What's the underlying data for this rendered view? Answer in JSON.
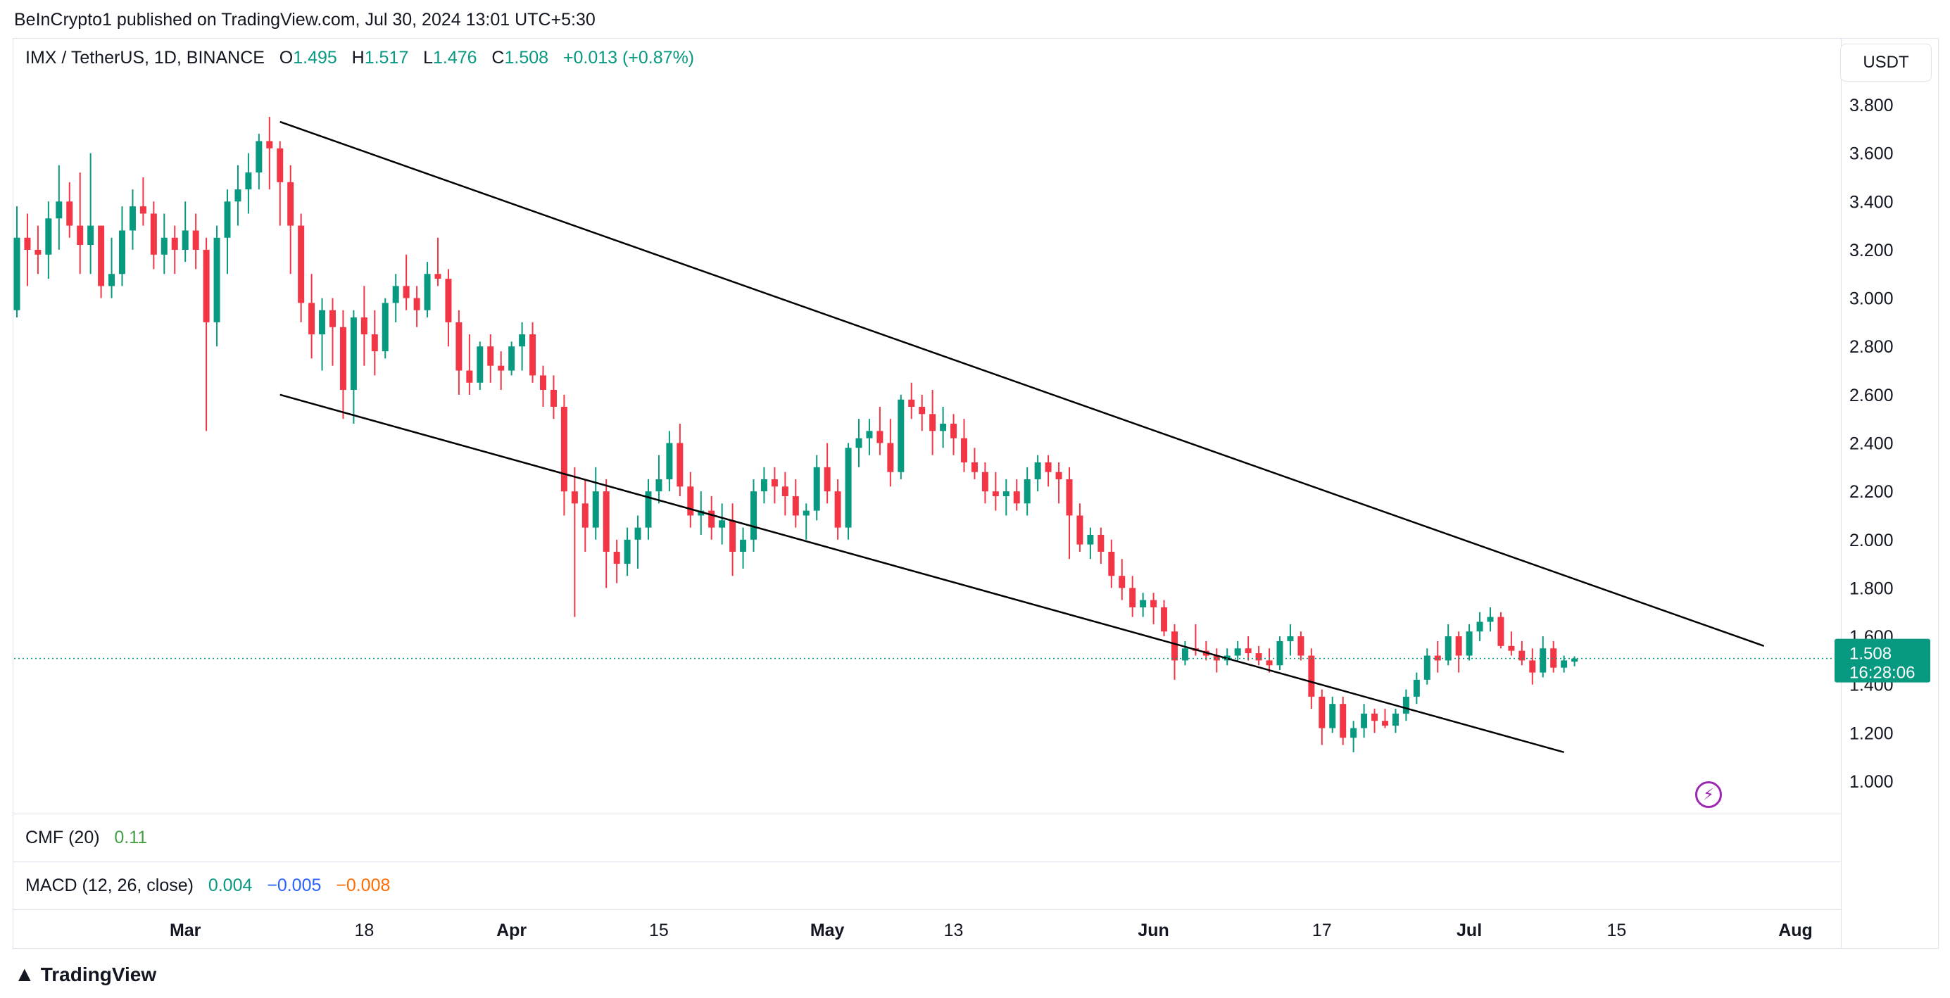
{
  "header": {
    "publisher_line": "BeInCrypto1 published on TradingView.com, Jul 30, 2024 13:01 UTC+5:30"
  },
  "legend": {
    "symbol": "IMX / TetherUS, 1D, BINANCE",
    "o_label": "O",
    "o_value": "1.495",
    "h_label": "H",
    "h_value": "1.517",
    "l_label": "L",
    "l_value": "1.476",
    "c_label": "C",
    "c_value": "1.508",
    "change": "+0.013 (+0.87%)"
  },
  "currency": "USDT",
  "price_tag": {
    "price": "1.508",
    "countdown": "16:28:06"
  },
  "indicators": {
    "cmf": {
      "label": "CMF (20)",
      "value": "0.11"
    },
    "macd": {
      "label": "MACD (12, 26, close)",
      "v1": "0.004",
      "v2": "−0.005",
      "v3": "−0.008"
    }
  },
  "footer": {
    "brand": "TradingView"
  },
  "colors": {
    "up": "#089981",
    "down": "#f23645",
    "cmf": "#43a047",
    "macd_signal": "#2962ff",
    "macd_hist": "#ff6d00",
    "alert": "#9c27b0"
  },
  "chart_data": {
    "type": "candlestick",
    "y_axis": {
      "min": 0.9,
      "max": 3.9,
      "ticks": [
        1.0,
        1.2,
        1.4,
        1.6,
        1.8,
        2.0,
        2.2,
        2.4,
        2.6,
        2.8,
        3.0,
        3.2,
        3.4,
        3.6,
        3.8
      ],
      "tick_labels": [
        "1.000",
        "1.200",
        "1.400",
        "1.600",
        "1.800",
        "2.000",
        "2.200",
        "2.400",
        "2.600",
        "2.800",
        "3.000",
        "3.200",
        "3.400",
        "3.600",
        "3.800"
      ]
    },
    "x_axis": {
      "start_date": "2024-02-14",
      "tick_labels": [
        {
          "label": "Mar",
          "date": "2024-03-01",
          "bold": true
        },
        {
          "label": "18",
          "date": "2024-03-18",
          "bold": false
        },
        {
          "label": "Apr",
          "date": "2024-04-01",
          "bold": true
        },
        {
          "label": "15",
          "date": "2024-04-15",
          "bold": false
        },
        {
          "label": "May",
          "date": "2024-05-01",
          "bold": true
        },
        {
          "label": "13",
          "date": "2024-05-13",
          "bold": false
        },
        {
          "label": "Jun",
          "date": "2024-06-01",
          "bold": true
        },
        {
          "label": "17",
          "date": "2024-06-17",
          "bold": false
        },
        {
          "label": "Jul",
          "date": "2024-07-01",
          "bold": true
        },
        {
          "label": "15",
          "date": "2024-07-15",
          "bold": false
        },
        {
          "label": "Aug",
          "date": "2024-08-01",
          "bold": true
        }
      ]
    },
    "ohlc": [
      [
        2.95,
        3.38,
        2.92,
        3.25
      ],
      [
        3.25,
        3.35,
        3.05,
        3.2
      ],
      [
        3.2,
        3.3,
        3.1,
        3.18
      ],
      [
        3.18,
        3.4,
        3.08,
        3.33
      ],
      [
        3.33,
        3.55,
        3.2,
        3.4
      ],
      [
        3.4,
        3.48,
        3.25,
        3.3
      ],
      [
        3.3,
        3.52,
        3.1,
        3.22
      ],
      [
        3.22,
        3.6,
        3.1,
        3.3
      ],
      [
        3.3,
        3.3,
        3.0,
        3.05
      ],
      [
        3.05,
        3.25,
        3.0,
        3.1
      ],
      [
        3.1,
        3.38,
        3.05,
        3.28
      ],
      [
        3.28,
        3.45,
        3.2,
        3.38
      ],
      [
        3.38,
        3.5,
        3.3,
        3.35
      ],
      [
        3.35,
        3.4,
        3.12,
        3.18
      ],
      [
        3.18,
        3.35,
        3.1,
        3.25
      ],
      [
        3.25,
        3.3,
        3.1,
        3.2
      ],
      [
        3.2,
        3.4,
        3.15,
        3.28
      ],
      [
        3.28,
        3.35,
        3.12,
        3.2
      ],
      [
        3.2,
        3.25,
        2.45,
        2.9
      ],
      [
        2.9,
        3.3,
        2.8,
        3.25
      ],
      [
        3.25,
        3.45,
        3.1,
        3.4
      ],
      [
        3.4,
        3.55,
        3.3,
        3.45
      ],
      [
        3.45,
        3.6,
        3.35,
        3.52
      ],
      [
        3.52,
        3.68,
        3.45,
        3.65
      ],
      [
        3.65,
        3.75,
        3.45,
        3.62
      ],
      [
        3.62,
        3.65,
        3.3,
        3.48
      ],
      [
        3.48,
        3.55,
        3.1,
        3.3
      ],
      [
        3.3,
        3.35,
        2.9,
        2.98
      ],
      [
        2.98,
        3.1,
        2.75,
        2.85
      ],
      [
        2.85,
        3.0,
        2.7,
        2.95
      ],
      [
        2.95,
        3.0,
        2.72,
        2.88
      ],
      [
        2.88,
        2.95,
        2.5,
        2.62
      ],
      [
        2.62,
        2.95,
        2.48,
        2.92
      ],
      [
        2.92,
        3.05,
        2.72,
        2.85
      ],
      [
        2.85,
        2.95,
        2.68,
        2.78
      ],
      [
        2.78,
        3.0,
        2.75,
        2.98
      ],
      [
        2.98,
        3.1,
        2.9,
        3.05
      ],
      [
        3.05,
        3.18,
        2.95,
        3.0
      ],
      [
        3.0,
        3.05,
        2.88,
        2.95
      ],
      [
        2.95,
        3.15,
        2.92,
        3.1
      ],
      [
        3.1,
        3.25,
        3.05,
        3.08
      ],
      [
        3.08,
        3.12,
        2.8,
        2.9
      ],
      [
        2.9,
        2.95,
        2.6,
        2.7
      ],
      [
        2.7,
        2.85,
        2.6,
        2.65
      ],
      [
        2.65,
        2.82,
        2.62,
        2.8
      ],
      [
        2.8,
        2.85,
        2.65,
        2.72
      ],
      [
        2.72,
        2.78,
        2.62,
        2.7
      ],
      [
        2.7,
        2.82,
        2.68,
        2.8
      ],
      [
        2.8,
        2.9,
        2.7,
        2.85
      ],
      [
        2.85,
        2.9,
        2.65,
        2.68
      ],
      [
        2.68,
        2.72,
        2.55,
        2.62
      ],
      [
        2.62,
        2.68,
        2.5,
        2.55
      ],
      [
        2.55,
        2.6,
        2.1,
        2.2
      ],
      [
        2.2,
        2.3,
        1.68,
        2.15
      ],
      [
        2.15,
        2.25,
        1.95,
        2.05
      ],
      [
        2.05,
        2.3,
        2.0,
        2.2
      ],
      [
        2.2,
        2.25,
        1.8,
        1.95
      ],
      [
        1.95,
        2.0,
        1.82,
        1.9
      ],
      [
        1.9,
        2.05,
        1.85,
        2.0
      ],
      [
        2.0,
        2.1,
        1.88,
        2.05
      ],
      [
        2.05,
        2.25,
        2.0,
        2.2
      ],
      [
        2.2,
        2.35,
        2.15,
        2.25
      ],
      [
        2.25,
        2.45,
        2.2,
        2.4
      ],
      [
        2.4,
        2.48,
        2.18,
        2.22
      ],
      [
        2.22,
        2.28,
        2.05,
        2.1
      ],
      [
        2.1,
        2.2,
        2.02,
        2.12
      ],
      [
        2.12,
        2.18,
        2.0,
        2.05
      ],
      [
        2.05,
        2.15,
        1.98,
        2.08
      ],
      [
        2.08,
        2.15,
        1.85,
        1.95
      ],
      [
        1.95,
        2.05,
        1.88,
        2.0
      ],
      [
        2.0,
        2.25,
        1.95,
        2.2
      ],
      [
        2.2,
        2.3,
        2.15,
        2.25
      ],
      [
        2.25,
        2.3,
        2.15,
        2.22
      ],
      [
        2.22,
        2.28,
        2.1,
        2.18
      ],
      [
        2.18,
        2.25,
        2.05,
        2.1
      ],
      [
        2.1,
        2.15,
        2.0,
        2.12
      ],
      [
        2.12,
        2.35,
        2.08,
        2.3
      ],
      [
        2.3,
        2.4,
        2.15,
        2.2
      ],
      [
        2.2,
        2.25,
        2.0,
        2.05
      ],
      [
        2.05,
        2.4,
        2.0,
        2.38
      ],
      [
        2.38,
        2.5,
        2.3,
        2.42
      ],
      [
        2.42,
        2.5,
        2.35,
        2.45
      ],
      [
        2.45,
        2.55,
        2.35,
        2.4
      ],
      [
        2.4,
        2.5,
        2.22,
        2.28
      ],
      [
        2.28,
        2.6,
        2.25,
        2.58
      ],
      [
        2.58,
        2.65,
        2.5,
        2.55
      ],
      [
        2.55,
        2.6,
        2.45,
        2.52
      ],
      [
        2.52,
        2.62,
        2.35,
        2.45
      ],
      [
        2.45,
        2.55,
        2.38,
        2.48
      ],
      [
        2.48,
        2.52,
        2.35,
        2.42
      ],
      [
        2.42,
        2.5,
        2.28,
        2.32
      ],
      [
        2.32,
        2.38,
        2.25,
        2.28
      ],
      [
        2.28,
        2.32,
        2.15,
        2.2
      ],
      [
        2.2,
        2.28,
        2.12,
        2.18
      ],
      [
        2.18,
        2.25,
        2.1,
        2.2
      ],
      [
        2.2,
        2.25,
        2.12,
        2.15
      ],
      [
        2.15,
        2.3,
        2.1,
        2.25
      ],
      [
        2.25,
        2.35,
        2.2,
        2.32
      ],
      [
        2.32,
        2.35,
        2.22,
        2.28
      ],
      [
        2.28,
        2.32,
        2.15,
        2.25
      ],
      [
        2.25,
        2.3,
        1.92,
        2.1
      ],
      [
        2.1,
        2.15,
        1.95,
        1.98
      ],
      [
        1.98,
        2.05,
        1.92,
        2.02
      ],
      [
        2.02,
        2.05,
        1.9,
        1.95
      ],
      [
        1.95,
        2.0,
        1.8,
        1.85
      ],
      [
        1.85,
        1.92,
        1.75,
        1.8
      ],
      [
        1.8,
        1.85,
        1.68,
        1.72
      ],
      [
        1.72,
        1.78,
        1.68,
        1.75
      ],
      [
        1.75,
        1.78,
        1.65,
        1.72
      ],
      [
        1.72,
        1.75,
        1.6,
        1.62
      ],
      [
        1.62,
        1.65,
        1.42,
        1.5
      ],
      [
        1.5,
        1.58,
        1.48,
        1.55
      ],
      [
        1.55,
        1.65,
        1.52,
        1.54
      ],
      [
        1.54,
        1.58,
        1.5,
        1.52
      ],
      [
        1.52,
        1.55,
        1.45,
        1.5
      ],
      [
        1.5,
        1.55,
        1.48,
        1.52
      ],
      [
        1.52,
        1.58,
        1.5,
        1.55
      ],
      [
        1.55,
        1.6,
        1.5,
        1.53
      ],
      [
        1.53,
        1.56,
        1.48,
        1.5
      ],
      [
        1.5,
        1.55,
        1.45,
        1.48
      ],
      [
        1.48,
        1.6,
        1.46,
        1.58
      ],
      [
        1.58,
        1.65,
        1.52,
        1.6
      ],
      [
        1.6,
        1.62,
        1.5,
        1.52
      ],
      [
        1.52,
        1.55,
        1.3,
        1.35
      ],
      [
        1.35,
        1.38,
        1.15,
        1.22
      ],
      [
        1.22,
        1.35,
        1.2,
        1.32
      ],
      [
        1.32,
        1.35,
        1.15,
        1.18
      ],
      [
        1.18,
        1.25,
        1.12,
        1.22
      ],
      [
        1.22,
        1.32,
        1.18,
        1.28
      ],
      [
        1.28,
        1.3,
        1.2,
        1.25
      ],
      [
        1.25,
        1.3,
        1.22,
        1.23
      ],
      [
        1.23,
        1.3,
        1.2,
        1.28
      ],
      [
        1.28,
        1.38,
        1.25,
        1.35
      ],
      [
        1.35,
        1.45,
        1.32,
        1.42
      ],
      [
        1.42,
        1.55,
        1.4,
        1.52
      ],
      [
        1.52,
        1.58,
        1.45,
        1.5
      ],
      [
        1.5,
        1.65,
        1.48,
        1.6
      ],
      [
        1.6,
        1.62,
        1.45,
        1.52
      ],
      [
        1.52,
        1.65,
        1.5,
        1.62
      ],
      [
        1.62,
        1.7,
        1.58,
        1.66
      ],
      [
        1.66,
        1.72,
        1.62,
        1.68
      ],
      [
        1.68,
        1.7,
        1.55,
        1.56
      ],
      [
        1.56,
        1.62,
        1.52,
        1.54
      ],
      [
        1.54,
        1.58,
        1.48,
        1.5
      ],
      [
        1.5,
        1.55,
        1.4,
        1.45
      ],
      [
        1.45,
        1.6,
        1.43,
        1.55
      ],
      [
        1.55,
        1.58,
        1.45,
        1.47
      ],
      [
        1.47,
        1.52,
        1.45,
        1.5
      ],
      [
        1.495,
        1.517,
        1.476,
        1.508
      ]
    ],
    "trend_lines": [
      {
        "name": "upper-channel",
        "from": {
          "date": "2024-03-10",
          "price": 3.73
        },
        "to": {
          "date": "2024-07-29",
          "price": 1.56
        }
      },
      {
        "name": "lower-channel",
        "from": {
          "date": "2024-03-10",
          "price": 2.6
        },
        "to": {
          "date": "2024-07-10",
          "price": 1.12
        }
      }
    ],
    "last_price": 1.508
  }
}
